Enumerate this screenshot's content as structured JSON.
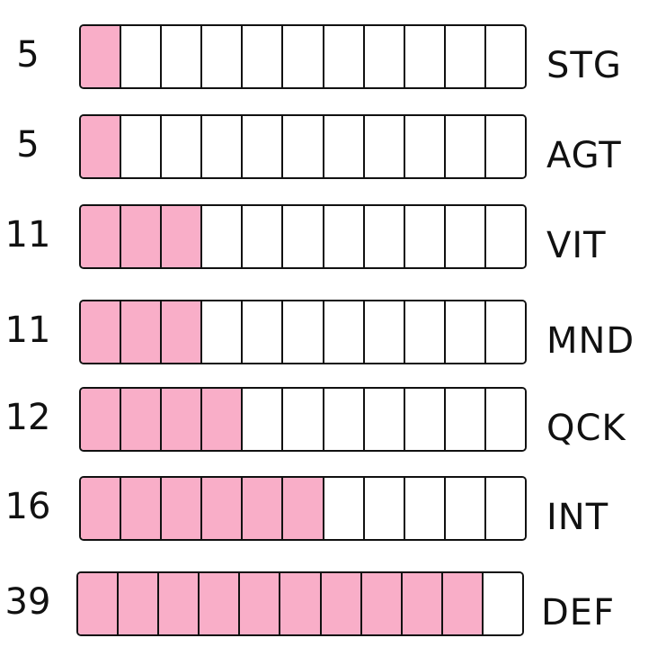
{
  "fill_color": "#f9aec8",
  "segments_per_bar": 11,
  "stats": [
    {
      "value": "5",
      "label": "STG",
      "filled_segments": 1
    },
    {
      "value": "5",
      "label": "AGT",
      "filled_segments": 1
    },
    {
      "value": "11",
      "label": "VIT",
      "filled_segments": 3
    },
    {
      "value": "11",
      "label": "MND",
      "filled_segments": 3
    },
    {
      "value": "12",
      "label": "QCK",
      "filled_segments": 4
    },
    {
      "value": "16",
      "label": "INT",
      "filled_segments": 6
    },
    {
      "value": "39",
      "label": "DEF",
      "filled_segments": 10
    }
  ]
}
